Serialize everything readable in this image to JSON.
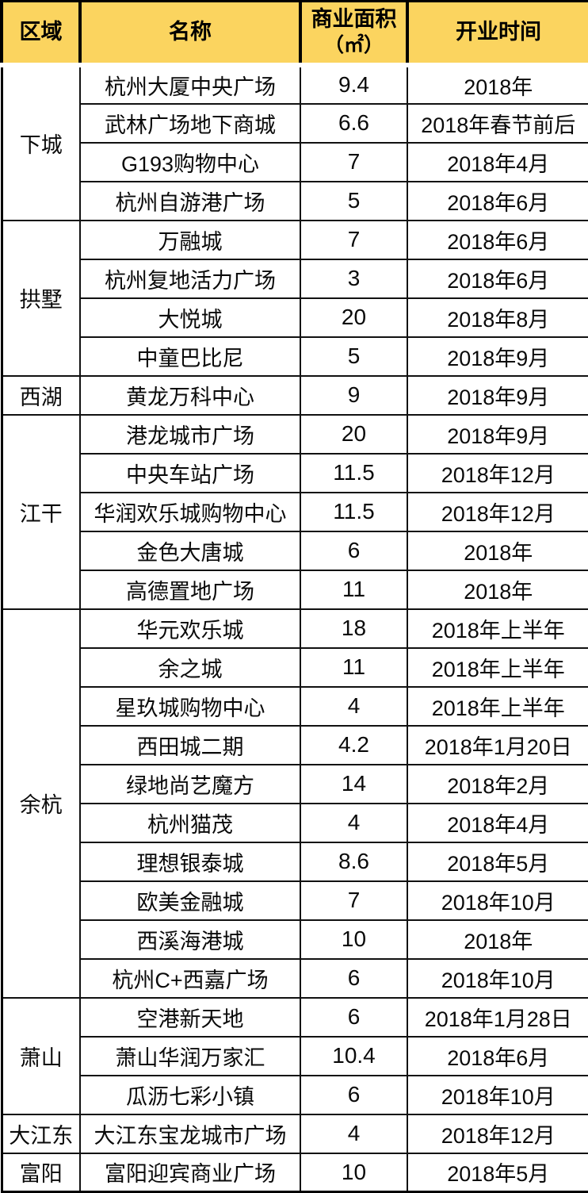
{
  "table": {
    "accent_color": "#FBD45F",
    "border_color": "#000000",
    "text_color": "#000000",
    "header": {
      "region": "区域",
      "name": "名称",
      "area_line1": "商业面积",
      "area_line2": "（㎡）",
      "opening": "开业时间"
    },
    "sections": [
      {
        "region": "下城",
        "rows": [
          {
            "name": "杭州大厦中央广场",
            "area": "9.4",
            "opening": "2018年"
          },
          {
            "name": "武林广场地下商城",
            "area": "6.6",
            "opening": "2018年春节前后"
          },
          {
            "name": "G193购物中心",
            "area": "7",
            "opening": "2018年4月"
          },
          {
            "name": "杭州自游港广场",
            "area": "5",
            "opening": "2018年6月"
          }
        ]
      },
      {
        "region": "拱墅",
        "rows": [
          {
            "name": "万融城",
            "area": "7",
            "opening": "2018年6月"
          },
          {
            "name": "杭州复地活力广场",
            "area": "3",
            "opening": "2018年6月"
          },
          {
            "name": "大悦城",
            "area": "20",
            "opening": "2018年8月"
          },
          {
            "name": "中童巴比尼",
            "area": "5",
            "opening": "2018年9月"
          }
        ]
      },
      {
        "region": "西湖",
        "rows": [
          {
            "name": "黄龙万科中心",
            "area": "9",
            "opening": "2018年9月"
          }
        ]
      },
      {
        "region": "江干",
        "rows": [
          {
            "name": "港龙城市广场",
            "area": "20",
            "opening": "2018年9月"
          },
          {
            "name": "中央车站广场",
            "area": "11.5",
            "opening": "2018年12月"
          },
          {
            "name": "华润欢乐城购物中心",
            "area": "11.5",
            "opening": "2018年12月"
          },
          {
            "name": "金色大唐城",
            "area": "6",
            "opening": "2018年"
          },
          {
            "name": "高德置地广场",
            "area": "11",
            "opening": "2018年"
          }
        ]
      },
      {
        "region": "余杭",
        "rows": [
          {
            "name": "华元欢乐城",
            "area": "18",
            "opening": "2018年上半年"
          },
          {
            "name": "余之城",
            "area": "11",
            "opening": "2018年上半年"
          },
          {
            "name": "星玖城购物中心",
            "area": "4",
            "opening": "2018年上半年"
          },
          {
            "name": "西田城二期",
            "area": "4.2",
            "opening": "2018年1月20日"
          },
          {
            "name": "绿地尚艺魔方",
            "area": "14",
            "opening": "2018年2月"
          },
          {
            "name": "杭州猫茂",
            "area": "4",
            "opening": "2018年4月"
          },
          {
            "name": "理想银泰城",
            "area": "8.6",
            "opening": "2018年5月"
          },
          {
            "name": "欧美金融城",
            "area": "7",
            "opening": "2018年10月"
          },
          {
            "name": "西溪海港城",
            "area": "10",
            "opening": "2018年"
          },
          {
            "name": "杭州C+西嘉广场",
            "area": "6",
            "opening": "2018年10月"
          }
        ]
      },
      {
        "region": "萧山",
        "rows": [
          {
            "name": "空港新天地",
            "area": "6",
            "opening": "2018年1月28日"
          },
          {
            "name": "萧山华润万家汇",
            "area": "10.4",
            "opening": "2018年6月"
          },
          {
            "name": "瓜沥七彩小镇",
            "area": "6",
            "opening": "2018年10月"
          }
        ]
      },
      {
        "region": "大江东",
        "rows": [
          {
            "name": "大江东宝龙城市广场",
            "area": "4",
            "opening": "2018年12月"
          }
        ]
      },
      {
        "region": "富阳",
        "rows": [
          {
            "name": "富阳迎宾商业广场",
            "area": "10",
            "opening": "2018年5月"
          }
        ]
      }
    ]
  },
  "chart_data": {
    "type": "table",
    "columns": [
      "区域",
      "名称",
      "商业面积（㎡）",
      "开业时间"
    ],
    "rows": [
      [
        "下城",
        "杭州大厦中央广场",
        9.4,
        "2018年"
      ],
      [
        "下城",
        "武林广场地下商城",
        6.6,
        "2018年春节前后"
      ],
      [
        "下城",
        "G193购物中心",
        7,
        "2018年4月"
      ],
      [
        "下城",
        "杭州自游港广场",
        5,
        "2018年6月"
      ],
      [
        "拱墅",
        "万融城",
        7,
        "2018年6月"
      ],
      [
        "拱墅",
        "杭州复地活力广场",
        3,
        "2018年6月"
      ],
      [
        "拱墅",
        "大悦城",
        20,
        "2018年8月"
      ],
      [
        "拱墅",
        "中童巴比尼",
        5,
        "2018年9月"
      ],
      [
        "西湖",
        "黄龙万科中心",
        9,
        "2018年9月"
      ],
      [
        "江干",
        "港龙城市广场",
        20,
        "2018年9月"
      ],
      [
        "江干",
        "中央车站广场",
        11.5,
        "2018年12月"
      ],
      [
        "江干",
        "华润欢乐城购物中心",
        11.5,
        "2018年12月"
      ],
      [
        "江干",
        "金色大唐城",
        6,
        "2018年"
      ],
      [
        "江干",
        "高德置地广场",
        11,
        "2018年"
      ],
      [
        "余杭",
        "华元欢乐城",
        18,
        "2018年上半年"
      ],
      [
        "余杭",
        "余之城",
        11,
        "2018年上半年"
      ],
      [
        "余杭",
        "星玖城购物中心",
        4,
        "2018年上半年"
      ],
      [
        "余杭",
        "西田城二期",
        4.2,
        "2018年1月20日"
      ],
      [
        "余杭",
        "绿地尚艺魔方",
        14,
        "2018年2月"
      ],
      [
        "余杭",
        "杭州猫茂",
        4,
        "2018年4月"
      ],
      [
        "余杭",
        "理想银泰城",
        8.6,
        "2018年5月"
      ],
      [
        "余杭",
        "欧美金融城",
        7,
        "2018年10月"
      ],
      [
        "余杭",
        "西溪海港城",
        10,
        "2018年"
      ],
      [
        "余杭",
        "杭州C+西嘉广场",
        6,
        "2018年10月"
      ],
      [
        "萧山",
        "空港新天地",
        6,
        "2018年1月28日"
      ],
      [
        "萧山",
        "萧山华润万家汇",
        10.4,
        "2018年6月"
      ],
      [
        "萧山",
        "瓜沥七彩小镇",
        6,
        "2018年10月"
      ],
      [
        "大江东",
        "大江东宝龙城市广场",
        4,
        "2018年12月"
      ],
      [
        "富阳",
        "富阳迎宾商业广场",
        10,
        "2018年5月"
      ]
    ]
  }
}
